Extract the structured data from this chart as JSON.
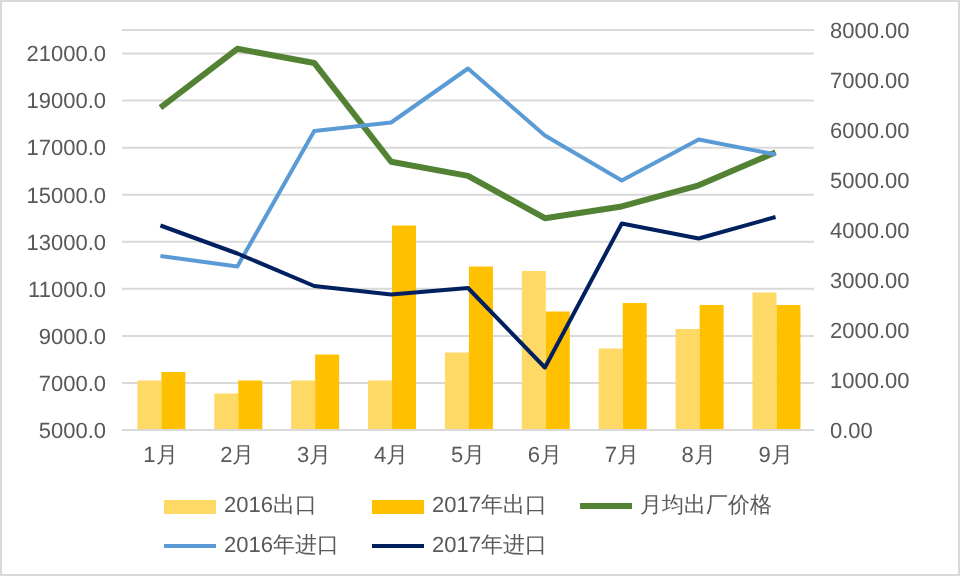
{
  "chart_data": {
    "type": "bar",
    "categories": [
      "1月",
      "2月",
      "3月",
      "4月",
      "5月",
      "6月",
      "7月",
      "8月",
      "9月"
    ],
    "series": [
      {
        "name": "2016出口",
        "axis": "y2",
        "color": "#ffd966",
        "values": [
          990,
          730,
          990,
          990,
          1550,
          3180,
          1630,
          2020,
          2750
        ]
      },
      {
        "name": "2017年出口",
        "axis": "y2",
        "color": "#ffc000",
        "values": [
          1160,
          990,
          1510,
          4090,
          3270,
          2370,
          2540,
          2500,
          2500
        ]
      },
      {
        "name": "月均出厂价格",
        "type": "line",
        "color": "#548235",
        "values": [
          18700,
          21200,
          20600,
          16400,
          15800,
          14000,
          14500,
          15400,
          16800
        ]
      },
      {
        "name": "2016年进口",
        "type": "line",
        "axis": "y2",
        "color": "#5b9bd5",
        "values": [
          3480,
          3270,
          5980,
          6150,
          7230,
          5890,
          4990,
          5810,
          5510
        ]
      },
      {
        "name": "2017年进口",
        "type": "line",
        "axis": "y2",
        "color": "#002060",
        "values": [
          4090,
          3530,
          2880,
          2710,
          2840,
          1250,
          4130,
          3830,
          4260
        ]
      }
    ],
    "ylim": [
      5000,
      22000
    ],
    "yticks": [
      {
        "value": 5000,
        "label": "5000.0"
      },
      {
        "value": 7000,
        "label": "7000.0"
      },
      {
        "value": 9000,
        "label": "9000.0"
      },
      {
        "value": 11000,
        "label": "11000.0"
      },
      {
        "value": 13000,
        "label": "13000.0"
      },
      {
        "value": 15000,
        "label": "15000.0"
      },
      {
        "value": 17000,
        "label": "17000.0"
      },
      {
        "value": 19000,
        "label": "19000.0"
      },
      {
        "value": 21000,
        "label": "21000.0"
      }
    ],
    "y2lim": [
      0,
      8000
    ],
    "y2ticks": [
      {
        "value": 0,
        "label": "0.00"
      },
      {
        "value": 1000,
        "label": "1000.00"
      },
      {
        "value": 2000,
        "label": "2000.00"
      },
      {
        "value": 3000,
        "label": "3000.00"
      },
      {
        "value": 4000,
        "label": "4000.00"
      },
      {
        "value": 5000,
        "label": "5000.00"
      },
      {
        "value": 6000,
        "label": "6000.00"
      },
      {
        "value": 7000,
        "label": "7000.00"
      },
      {
        "value": 8000,
        "label": "8000.00"
      }
    ],
    "grid": "y",
    "legend": "bottom",
    "marker": "none",
    "line_style": "solid"
  }
}
